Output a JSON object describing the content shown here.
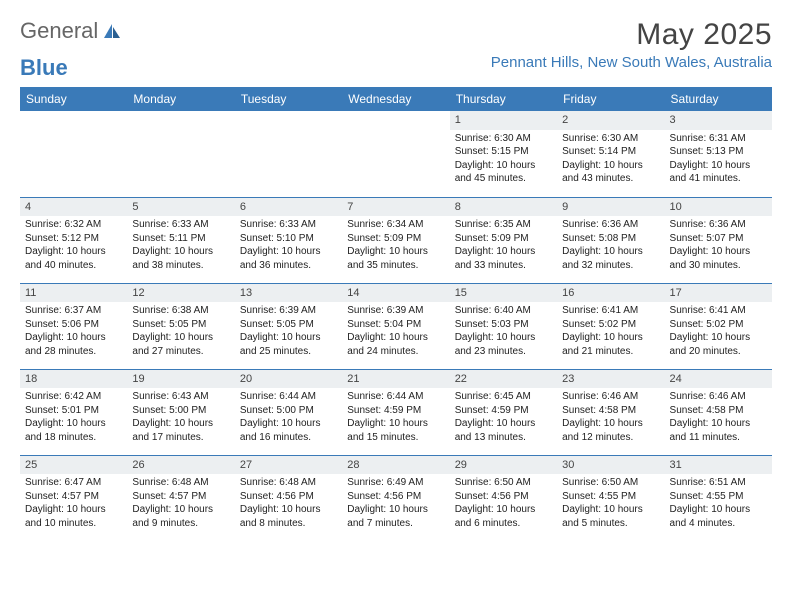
{
  "logo": {
    "text1": "General",
    "text2": "Blue"
  },
  "title": "May 2025",
  "location": "Pennant Hills, New South Wales, Australia",
  "header_bg": "#3a7ab8",
  "daynum_bg": "#eceff1",
  "border_color": "#3a7ab8",
  "weekdays": [
    "Sunday",
    "Monday",
    "Tuesday",
    "Wednesday",
    "Thursday",
    "Friday",
    "Saturday"
  ],
  "weeks": [
    [
      null,
      null,
      null,
      null,
      {
        "n": "1",
        "sr": "6:30 AM",
        "ss": "5:15 PM",
        "dl": "10 hours and 45 minutes."
      },
      {
        "n": "2",
        "sr": "6:30 AM",
        "ss": "5:14 PM",
        "dl": "10 hours and 43 minutes."
      },
      {
        "n": "3",
        "sr": "6:31 AM",
        "ss": "5:13 PM",
        "dl": "10 hours and 41 minutes."
      }
    ],
    [
      {
        "n": "4",
        "sr": "6:32 AM",
        "ss": "5:12 PM",
        "dl": "10 hours and 40 minutes."
      },
      {
        "n": "5",
        "sr": "6:33 AM",
        "ss": "5:11 PM",
        "dl": "10 hours and 38 minutes."
      },
      {
        "n": "6",
        "sr": "6:33 AM",
        "ss": "5:10 PM",
        "dl": "10 hours and 36 minutes."
      },
      {
        "n": "7",
        "sr": "6:34 AM",
        "ss": "5:09 PM",
        "dl": "10 hours and 35 minutes."
      },
      {
        "n": "8",
        "sr": "6:35 AM",
        "ss": "5:09 PM",
        "dl": "10 hours and 33 minutes."
      },
      {
        "n": "9",
        "sr": "6:36 AM",
        "ss": "5:08 PM",
        "dl": "10 hours and 32 minutes."
      },
      {
        "n": "10",
        "sr": "6:36 AM",
        "ss": "5:07 PM",
        "dl": "10 hours and 30 minutes."
      }
    ],
    [
      {
        "n": "11",
        "sr": "6:37 AM",
        "ss": "5:06 PM",
        "dl": "10 hours and 28 minutes."
      },
      {
        "n": "12",
        "sr": "6:38 AM",
        "ss": "5:05 PM",
        "dl": "10 hours and 27 minutes."
      },
      {
        "n": "13",
        "sr": "6:39 AM",
        "ss": "5:05 PM",
        "dl": "10 hours and 25 minutes."
      },
      {
        "n": "14",
        "sr": "6:39 AM",
        "ss": "5:04 PM",
        "dl": "10 hours and 24 minutes."
      },
      {
        "n": "15",
        "sr": "6:40 AM",
        "ss": "5:03 PM",
        "dl": "10 hours and 23 minutes."
      },
      {
        "n": "16",
        "sr": "6:41 AM",
        "ss": "5:02 PM",
        "dl": "10 hours and 21 minutes."
      },
      {
        "n": "17",
        "sr": "6:41 AM",
        "ss": "5:02 PM",
        "dl": "10 hours and 20 minutes."
      }
    ],
    [
      {
        "n": "18",
        "sr": "6:42 AM",
        "ss": "5:01 PM",
        "dl": "10 hours and 18 minutes."
      },
      {
        "n": "19",
        "sr": "6:43 AM",
        "ss": "5:00 PM",
        "dl": "10 hours and 17 minutes."
      },
      {
        "n": "20",
        "sr": "6:44 AM",
        "ss": "5:00 PM",
        "dl": "10 hours and 16 minutes."
      },
      {
        "n": "21",
        "sr": "6:44 AM",
        "ss": "4:59 PM",
        "dl": "10 hours and 15 minutes."
      },
      {
        "n": "22",
        "sr": "6:45 AM",
        "ss": "4:59 PM",
        "dl": "10 hours and 13 minutes."
      },
      {
        "n": "23",
        "sr": "6:46 AM",
        "ss": "4:58 PM",
        "dl": "10 hours and 12 minutes."
      },
      {
        "n": "24",
        "sr": "6:46 AM",
        "ss": "4:58 PM",
        "dl": "10 hours and 11 minutes."
      }
    ],
    [
      {
        "n": "25",
        "sr": "6:47 AM",
        "ss": "4:57 PM",
        "dl": "10 hours and 10 minutes."
      },
      {
        "n": "26",
        "sr": "6:48 AM",
        "ss": "4:57 PM",
        "dl": "10 hours and 9 minutes."
      },
      {
        "n": "27",
        "sr": "6:48 AM",
        "ss": "4:56 PM",
        "dl": "10 hours and 8 minutes."
      },
      {
        "n": "28",
        "sr": "6:49 AM",
        "ss": "4:56 PM",
        "dl": "10 hours and 7 minutes."
      },
      {
        "n": "29",
        "sr": "6:50 AM",
        "ss": "4:56 PM",
        "dl": "10 hours and 6 minutes."
      },
      {
        "n": "30",
        "sr": "6:50 AM",
        "ss": "4:55 PM",
        "dl": "10 hours and 5 minutes."
      },
      {
        "n": "31",
        "sr": "6:51 AM",
        "ss": "4:55 PM",
        "dl": "10 hours and 4 minutes."
      }
    ]
  ],
  "labels": {
    "sunrise": "Sunrise: ",
    "sunset": "Sunset: ",
    "daylight": "Daylight: "
  }
}
